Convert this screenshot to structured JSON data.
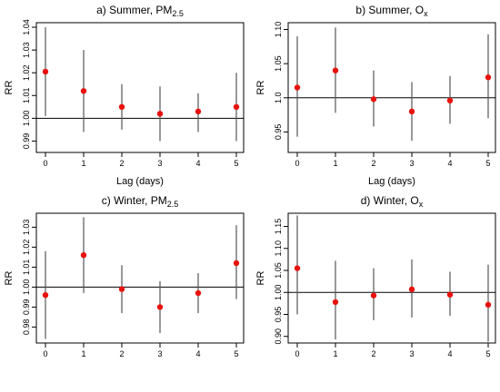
{
  "chart_data": [
    {
      "type": "scatter",
      "title": "a) Summer, PM",
      "title_sub": "2.5",
      "xlabel": "Lag (days)",
      "ylabel": "RR",
      "x": [
        0,
        1,
        2,
        3,
        4,
        5
      ],
      "xticks": [
        "0",
        "1",
        "2",
        "3",
        "4",
        "5"
      ],
      "ylim": [
        0.985,
        1.042
      ],
      "yticks": [
        0.99,
        1.0,
        1.01,
        1.02,
        1.03,
        1.04
      ],
      "ytick_labels": [
        "0.99",
        "1.00",
        "1.01",
        "1.02",
        "1.03",
        "1.04"
      ],
      "reference_line": 1.0,
      "series": [
        {
          "values": [
            1.0205,
            1.012,
            1.005,
            1.002,
            1.003,
            1.005
          ],
          "lower": [
            1.001,
            0.994,
            0.995,
            0.99,
            0.994,
            0.99
          ],
          "upper": [
            1.04,
            1.03,
            1.015,
            1.014,
            1.011,
            1.02
          ],
          "color": "#e8120c"
        }
      ]
    },
    {
      "type": "scatter",
      "title": "b) Summer, O",
      "title_sub": "x",
      "xlabel": "Lag (days)",
      "ylabel": "RR",
      "x": [
        0,
        1,
        2,
        3,
        4,
        5
      ],
      "xticks": [
        "0",
        "1",
        "2",
        "3",
        "4",
        "5"
      ],
      "ylim": [
        0.92,
        1.11
      ],
      "yticks": [
        0.95,
        1.0,
        1.05,
        1.1
      ],
      "ytick_labels": [
        "0.95",
        "1.0",
        "1.05",
        "1.10"
      ],
      "reference_line": 1.0,
      "series": [
        {
          "values": [
            1.015,
            1.04,
            0.998,
            0.98,
            0.996,
            1.03
          ],
          "lower": [
            0.943,
            0.978,
            0.958,
            0.937,
            0.962,
            0.97
          ],
          "upper": [
            1.09,
            1.103,
            1.04,
            1.023,
            1.032,
            1.093
          ],
          "color": "#e8120c"
        }
      ]
    },
    {
      "type": "scatter",
      "title": "c) Winter, PM",
      "title_sub": "2.5",
      "xlabel": "",
      "ylabel": "RR",
      "x": [
        0,
        1,
        2,
        3,
        4,
        5
      ],
      "xticks": [
        "0",
        "1",
        "2",
        "3",
        "4",
        "5"
      ],
      "ylim": [
        0.972,
        1.037
      ],
      "yticks": [
        0.98,
        0.99,
        1.0,
        1.01,
        1.02,
        1.03
      ],
      "ytick_labels": [
        "0.98",
        "0.99",
        "1.00",
        "1.01",
        "1.02",
        "1.03"
      ],
      "reference_line": 1.0,
      "series": [
        {
          "values": [
            0.996,
            1.016,
            0.999,
            0.99,
            0.997,
            1.012
          ],
          "lower": [
            0.974,
            0.997,
            0.987,
            0.977,
            0.987,
            0.994
          ],
          "upper": [
            1.018,
            1.035,
            1.011,
            1.003,
            1.007,
            1.031
          ],
          "color": "#e8120c"
        }
      ]
    },
    {
      "type": "scatter",
      "title": "d) Winter, O",
      "title_sub": "x",
      "xlabel": "",
      "ylabel": "RR",
      "x": [
        0,
        1,
        2,
        3,
        4,
        5
      ],
      "xticks": [
        "0",
        "1",
        "2",
        "3",
        "4",
        "5"
      ],
      "ylim": [
        0.885,
        1.18
      ],
      "yticks": [
        0.9,
        0.95,
        1.0,
        1.05,
        1.1,
        1.15
      ],
      "ytick_labels": [
        "0.90",
        "0.95",
        "1.00",
        "1.05",
        "1.10",
        "1.15"
      ],
      "reference_line": 1.0,
      "series": [
        {
          "values": [
            1.055,
            0.978,
            0.993,
            1.007,
            0.995,
            0.972
          ],
          "lower": [
            0.95,
            0.893,
            0.937,
            0.943,
            0.947,
            0.888
          ],
          "upper": [
            1.175,
            1.072,
            1.055,
            1.075,
            1.047,
            1.063
          ],
          "color": "#e8120c"
        }
      ]
    }
  ]
}
